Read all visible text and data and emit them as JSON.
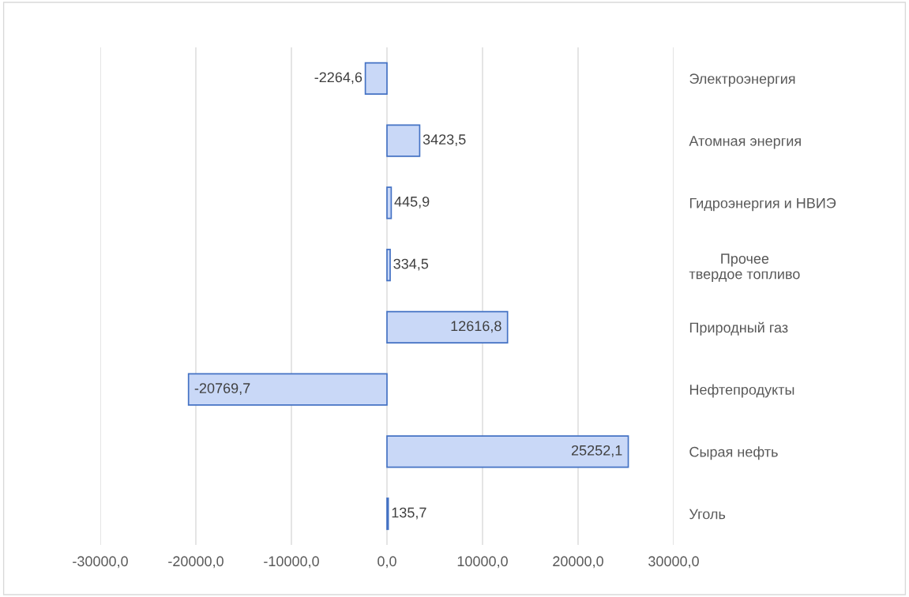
{
  "chart_data": {
    "type": "bar",
    "orientation": "horizontal",
    "categories": [
      "Электроэнергия",
      "Атомная энергия",
      "Гидроэнергия и НВИЭ",
      "Прочее\nтвердое топливо",
      "Природный газ",
      "Нефтепродукты",
      "Сырая нефть",
      "Уголь"
    ],
    "values": [
      -2264.6,
      3423.5,
      445.9,
      334.5,
      12616.8,
      -20769.7,
      25252.1,
      135.7
    ],
    "value_labels": [
      "-2264,6",
      "3423,5",
      "445,9",
      "334,5",
      "12616,8",
      "-20769,7",
      "25252,1",
      "135,7"
    ],
    "color": "#c9d8f7",
    "xlim": [
      -30000,
      30000
    ],
    "xticks": [
      {
        "value": -30000,
        "label": "-30000,0"
      },
      {
        "value": -20000,
        "label": "-20000,0"
      },
      {
        "value": -10000,
        "label": "-10000,0"
      },
      {
        "value": 0,
        "label": "0,0"
      },
      {
        "value": 10000,
        "label": "10000,0"
      },
      {
        "value": 20000,
        "label": "20000,0"
      },
      {
        "value": 30000,
        "label": "30000,0"
      }
    ],
    "grid": "x"
  }
}
